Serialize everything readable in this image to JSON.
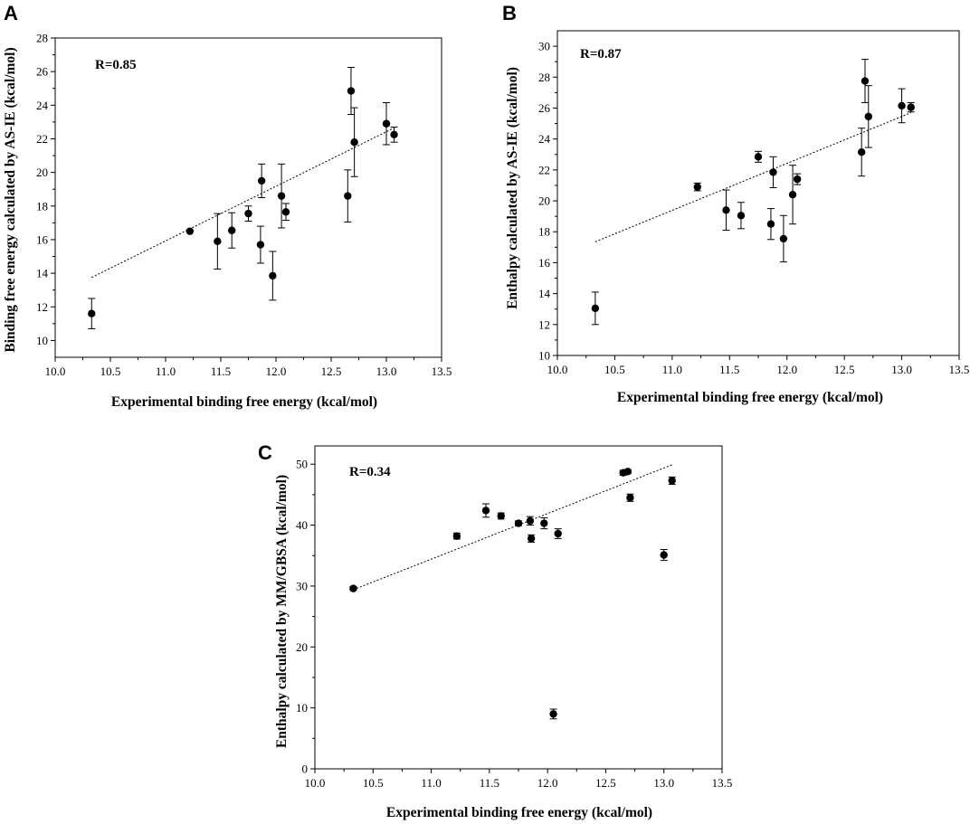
{
  "chart_data": [
    {
      "panel": "A",
      "type": "scatter",
      "annotation": "R=0.85",
      "xlabel": "Experimental binding free energy (kcal/mol)",
      "ylabel": "Binding free energy calculated by AS-IE (kcal/mol)",
      "xlim": [
        10.0,
        13.5
      ],
      "ylim": [
        9,
        28
      ],
      "xticks": [
        10.0,
        10.5,
        11.0,
        11.5,
        12.0,
        12.5,
        13.0,
        13.5
      ],
      "xtick_labels": [
        "10.0",
        "10.5",
        "11.0",
        "11.5",
        "12.0",
        "12.5",
        "13.0",
        "13.5"
      ],
      "yticks": [
        10,
        12,
        14,
        16,
        18,
        20,
        22,
        24,
        26,
        28
      ],
      "ytick_labels": [
        "10",
        "12",
        "14",
        "16",
        "18",
        "20",
        "22",
        "24",
        "26",
        "28"
      ],
      "points": [
        {
          "x": 10.33,
          "y": 11.6,
          "err": 0.9
        },
        {
          "x": 11.22,
          "y": 16.5,
          "err": 0
        },
        {
          "x": 11.47,
          "y": 15.9,
          "err": 1.65
        },
        {
          "x": 11.6,
          "y": 16.55,
          "err": 1.05
        },
        {
          "x": 11.75,
          "y": 17.55,
          "err": 0.45
        },
        {
          "x": 11.86,
          "y": 15.7,
          "err": 1.1
        },
        {
          "x": 11.87,
          "y": 19.5,
          "err": 1.0
        },
        {
          "x": 11.97,
          "y": 13.85,
          "err": 1.45
        },
        {
          "x": 12.05,
          "y": 18.6,
          "err": 1.9
        },
        {
          "x": 12.09,
          "y": 17.65,
          "err": 0.5
        },
        {
          "x": 12.65,
          "y": 18.6,
          "err": 1.55
        },
        {
          "x": 12.68,
          "y": 24.85,
          "err": 1.4
        },
        {
          "x": 12.71,
          "y": 21.8,
          "err": 2.05
        },
        {
          "x": 13.0,
          "y": 22.9,
          "err": 1.25
        },
        {
          "x": 13.07,
          "y": 22.25,
          "err": 0.45
        }
      ],
      "fit_line": {
        "x": [
          10.33,
          13.07
        ],
        "y": [
          13.75,
          22.65
        ]
      }
    },
    {
      "panel": "B",
      "type": "scatter",
      "annotation": "R=0.87",
      "xlabel": "Experimental binding free energy (kcal/mol)",
      "ylabel": "Enthalpy calculated by AS-IE (kcal/mol)",
      "xlim": [
        10.0,
        13.5
      ],
      "ylim": [
        10,
        31
      ],
      "xticks": [
        10.0,
        10.5,
        11.0,
        11.5,
        12.0,
        12.5,
        13.0,
        13.5
      ],
      "xtick_labels": [
        "10.0",
        "10.5",
        "11.0",
        "11.5",
        "12.0",
        "12.5",
        "13.0",
        "13.5"
      ],
      "yticks": [
        10,
        12,
        14,
        16,
        18,
        20,
        22,
        24,
        26,
        28,
        30
      ],
      "ytick_labels": [
        "10",
        "12",
        "14",
        "16",
        "18",
        "20",
        "22",
        "24",
        "26",
        "28",
        "30"
      ],
      "points": [
        {
          "x": 10.33,
          "y": 13.05,
          "err": 1.05
        },
        {
          "x": 11.22,
          "y": 20.9,
          "err": 0.25
        },
        {
          "x": 11.47,
          "y": 19.4,
          "err": 1.3
        },
        {
          "x": 11.6,
          "y": 19.05,
          "err": 0.85
        },
        {
          "x": 11.75,
          "y": 22.85,
          "err": 0.35
        },
        {
          "x": 11.86,
          "y": 18.5,
          "err": 1.0
        },
        {
          "x": 11.88,
          "y": 21.85,
          "err": 1.0
        },
        {
          "x": 11.97,
          "y": 17.55,
          "err": 1.5
        },
        {
          "x": 12.05,
          "y": 20.4,
          "err": 1.9
        },
        {
          "x": 12.09,
          "y": 21.4,
          "err": 0.35
        },
        {
          "x": 12.65,
          "y": 23.15,
          "err": 1.55
        },
        {
          "x": 12.68,
          "y": 27.75,
          "err": 1.4
        },
        {
          "x": 12.71,
          "y": 25.45,
          "err": 2.0
        },
        {
          "x": 13.0,
          "y": 26.15,
          "err": 1.1
        },
        {
          "x": 13.08,
          "y": 26.05,
          "err": 0.3
        }
      ],
      "fit_line": {
        "x": [
          10.33,
          13.08
        ],
        "y": [
          17.35,
          25.7
        ]
      }
    },
    {
      "panel": "C",
      "type": "scatter",
      "annotation": "R=0.34",
      "xlabel": "Experimental binding free energy (kcal/mol)",
      "ylabel": "Enthalpy calculated by MM/GBSA (kcal/mol)",
      "xlim": [
        10.0,
        13.5
      ],
      "ylim": [
        0,
        53
      ],
      "xticks": [
        10.0,
        10.5,
        11.0,
        11.5,
        12.0,
        12.5,
        13.0,
        13.5
      ],
      "xtick_labels": [
        "10.0",
        "10.5",
        "11.0",
        "11.5",
        "12.0",
        "12.5",
        "13.0",
        "13.5"
      ],
      "yticks": [
        0,
        10,
        20,
        30,
        40,
        50
      ],
      "ytick_labels": [
        "0",
        "10",
        "20",
        "30",
        "40",
        "50"
      ],
      "points": [
        {
          "x": 10.33,
          "y": 29.6,
          "err": 0.3
        },
        {
          "x": 11.22,
          "y": 38.2,
          "err": 0.5
        },
        {
          "x": 11.47,
          "y": 42.4,
          "err": 1.1
        },
        {
          "x": 11.6,
          "y": 41.5,
          "err": 0.5
        },
        {
          "x": 11.75,
          "y": 40.3,
          "err": 0.4
        },
        {
          "x": 11.85,
          "y": 40.7,
          "err": 0.7
        },
        {
          "x": 11.86,
          "y": 37.8,
          "err": 0.6
        },
        {
          "x": 11.97,
          "y": 40.3,
          "err": 0.9
        },
        {
          "x": 12.05,
          "y": 9.0,
          "err": 0.8
        },
        {
          "x": 12.09,
          "y": 38.6,
          "err": 0.8
        },
        {
          "x": 12.65,
          "y": 48.6,
          "err": 0.4
        },
        {
          "x": 12.69,
          "y": 48.8,
          "err": 0.3
        },
        {
          "x": 12.71,
          "y": 44.5,
          "err": 0.6
        },
        {
          "x": 13.0,
          "y": 35.1,
          "err": 0.9
        },
        {
          "x": 13.07,
          "y": 47.3,
          "err": 0.6
        }
      ],
      "fit_line": {
        "x": [
          10.33,
          13.07
        ],
        "y": [
          29.4,
          49.9
        ]
      }
    }
  ]
}
